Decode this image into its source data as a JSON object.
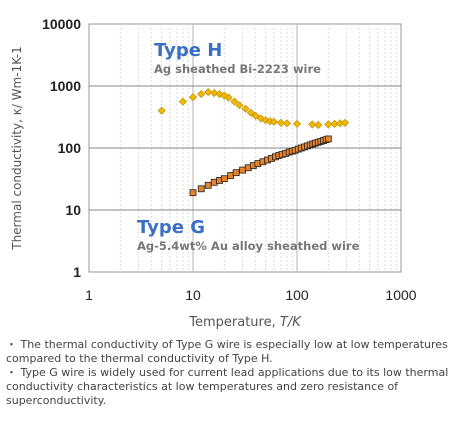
{
  "chart_data": {
    "type": "scatter",
    "xscale": "log",
    "yscale": "log",
    "xlim": [
      1,
      1000
    ],
    "ylim": [
      1,
      10000
    ],
    "xlabel_text": "Temperature, ",
    "xlabel_unit": "T/K",
    "ylabel": "Thermal conductivity, κ/ Wm-1K-1",
    "x_ticks": [
      "1",
      "10",
      "100",
      "1000"
    ],
    "y_ticks": [
      "1",
      "10",
      "100",
      "1000",
      "10000"
    ],
    "grid": true,
    "series": [
      {
        "id": "type-h",
        "label": "Type H",
        "sublabel": "Ag sheathed Bi-2223 wire",
        "color": "#f0b800",
        "marker": "diamond",
        "points": [
          [
            5,
            400
          ],
          [
            8,
            560
          ],
          [
            10,
            660
          ],
          [
            12,
            740
          ],
          [
            14,
            800
          ],
          [
            16,
            770
          ],
          [
            18,
            740
          ],
          [
            20,
            700
          ],
          [
            22,
            650
          ],
          [
            25,
            560
          ],
          [
            28,
            490
          ],
          [
            32,
            430
          ],
          [
            36,
            370
          ],
          [
            40,
            330
          ],
          [
            45,
            300
          ],
          [
            50,
            280
          ],
          [
            55,
            270
          ],
          [
            60,
            265
          ],
          [
            70,
            255
          ],
          [
            80,
            250
          ],
          [
            100,
            245
          ],
          [
            140,
            240
          ],
          [
            160,
            235
          ],
          [
            200,
            240
          ],
          [
            230,
            245
          ],
          [
            260,
            250
          ],
          [
            290,
            255
          ]
        ]
      },
      {
        "id": "type-g",
        "label": "Type G",
        "sublabel": "Ag-5.4wt% Au alloy sheathed wire",
        "color": "#e8842e",
        "marker": "square",
        "points": [
          [
            10,
            19
          ],
          [
            12,
            22
          ],
          [
            14,
            25
          ],
          [
            16,
            28
          ],
          [
            18,
            30
          ],
          [
            20,
            32
          ],
          [
            23,
            36
          ],
          [
            26,
            40
          ],
          [
            30,
            44
          ],
          [
            34,
            48
          ],
          [
            38,
            52
          ],
          [
            42,
            56
          ],
          [
            47,
            60
          ],
          [
            52,
            64
          ],
          [
            57,
            68
          ],
          [
            62,
            72
          ],
          [
            67,
            76
          ],
          [
            72,
            79
          ],
          [
            78,
            82
          ],
          [
            84,
            86
          ],
          [
            90,
            89
          ],
          [
            96,
            92
          ],
          [
            103,
            96
          ],
          [
            110,
            100
          ],
          [
            118,
            104
          ],
          [
            126,
            108
          ],
          [
            134,
            112
          ],
          [
            142,
            116
          ],
          [
            150,
            120
          ],
          [
            160,
            124
          ],
          [
            170,
            128
          ],
          [
            180,
            132
          ],
          [
            190,
            136
          ],
          [
            200,
            140
          ]
        ]
      }
    ]
  },
  "notes": [
    "・ The thermal conductivity of Type G wire is especially low at low temperatures compared to the thermal conductivity of Type H.",
    "・ Type G wire is widely used for current lead applications due to its low thermal conductivity characteristics at low temperatures and zero resistance of superconductivity."
  ]
}
